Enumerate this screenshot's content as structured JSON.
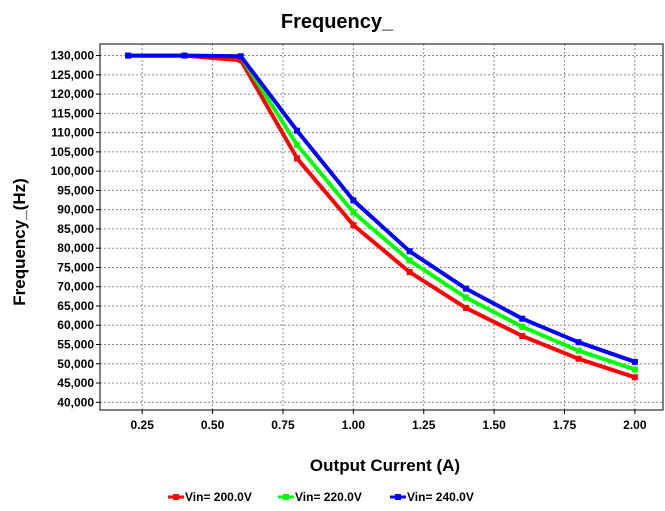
{
  "chart_data": {
    "type": "line",
    "title": "Frequency_",
    "xlabel": "Output Current (A)",
    "ylabel": "Frequency_(Hz)",
    "xlim": [
      0.1,
      2.1
    ],
    "ylim": [
      38000,
      133000
    ],
    "xticks": [
      "0.25",
      "0.50",
      "0.75",
      "1.00",
      "1.25",
      "1.50",
      "1.75",
      "2.00"
    ],
    "xtick_values": [
      0.25,
      0.5,
      0.75,
      1.0,
      1.25,
      1.5,
      1.75,
      2.0
    ],
    "yticks": [
      "40,000",
      "45,000",
      "50,000",
      "55,000",
      "60,000",
      "65,000",
      "70,000",
      "75,000",
      "80,000",
      "85,000",
      "90,000",
      "95,000",
      "100,000",
      "105,000",
      "110,000",
      "115,000",
      "120,000",
      "125,000",
      "130,000"
    ],
    "ytick_values": [
      40000,
      45000,
      50000,
      55000,
      60000,
      65000,
      70000,
      75000,
      80000,
      85000,
      90000,
      95000,
      100000,
      105000,
      110000,
      115000,
      120000,
      125000,
      130000
    ],
    "grid": true,
    "legend_position": "bottom",
    "x": [
      0.2,
      0.4,
      0.6,
      0.8,
      1.0,
      1.2,
      1.4,
      1.6,
      1.8,
      2.0
    ],
    "series": [
      {
        "name": "Vin= 200.0V",
        "color": "#ff0000",
        "values": [
          130000,
          130000,
          128800,
          103300,
          86000,
          73800,
          64500,
          57200,
          51300,
          46500
        ]
      },
      {
        "name": "Vin= 220.0V",
        "color": "#00ff00",
        "values": [
          130000,
          130000,
          129800,
          106800,
          89300,
          76800,
          67200,
          59600,
          53400,
          48500
        ]
      },
      {
        "name": "Vin= 240.0V",
        "color": "#0000ff",
        "values": [
          130000,
          130000,
          129800,
          110500,
          92400,
          79200,
          69500,
          61700,
          55600,
          50500
        ]
      }
    ]
  }
}
